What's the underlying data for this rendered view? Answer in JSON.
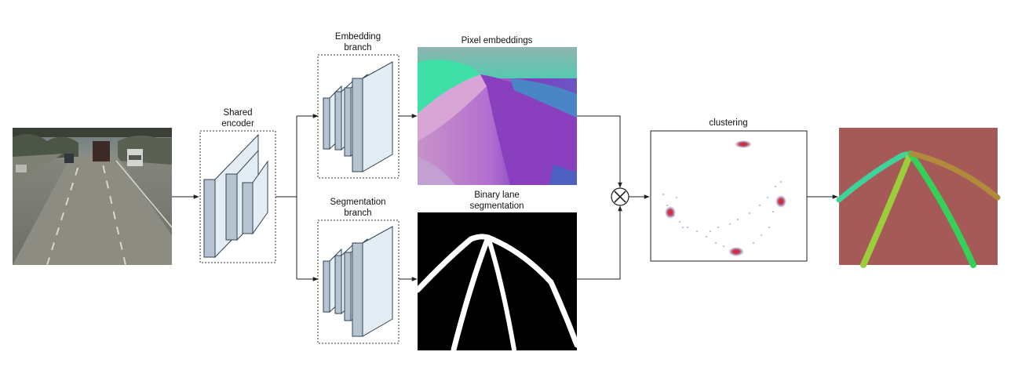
{
  "labels": {
    "shared_encoder": [
      "Shared",
      "encoder"
    ],
    "embedding_branch": [
      "Embedding",
      "branch"
    ],
    "segmentation_branch": [
      "Segmentation",
      "branch"
    ],
    "pixel_embeddings": "Pixel embeddings",
    "binary_lane_segmentation": [
      "Binary lane",
      "segmentation"
    ],
    "clustering": "clustering"
  },
  "colors": {
    "block_face": "#b6c3d0",
    "block_side": "#e4ecf4",
    "block_edge": "#334455",
    "arrow": "#222222",
    "dotted_box": "#333333",
    "output_background": "#a55a57",
    "lane_teal": "#3fd29a",
    "lane_lime": "#9ccd3a",
    "lane_green": "#34d05a",
    "lane_olive": "#b28a3c",
    "embedding_purple": "#8a3fbf",
    "embedding_teal": "#3ee0a8",
    "cluster_blue": "#4a6fb8",
    "cluster_red": "#e03030"
  },
  "icons": {
    "combine": "circled-x-icon",
    "input": "road-camera-image",
    "output": "lane-instance-image"
  }
}
